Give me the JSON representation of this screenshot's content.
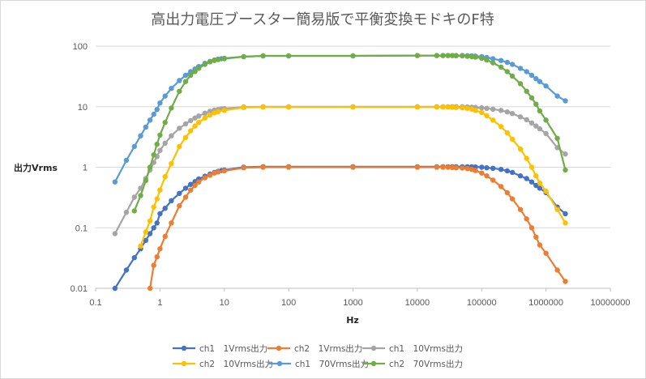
{
  "chart_data": {
    "type": "line",
    "title": "高出力電圧ブースター簡易版で平衡変換モドキのF特",
    "xlabel": "Hz",
    "ylabel": "出力Vrms",
    "x_scale": "log",
    "y_scale": "log",
    "xlim": [
      0.1,
      10000000
    ],
    "ylim": [
      0.01,
      100
    ],
    "x_ticks": [
      "0.1",
      "1",
      "10",
      "100",
      "1000",
      "10000",
      "100000",
      "1000000",
      "10000000"
    ],
    "y_ticks": [
      "0.01",
      "0.1",
      "1",
      "10",
      "100"
    ],
    "grid": "horizontal",
    "legend_position": "bottom",
    "series": [
      {
        "name": "ch1　1Vrms出力",
        "color": "#4472c4",
        "x": [
          0.2,
          0.3,
          0.4,
          0.5,
          0.6,
          0.7,
          0.8,
          0.9,
          1,
          1.2,
          1.5,
          2,
          2.5,
          3,
          3.5,
          4,
          5,
          6,
          7,
          8,
          9,
          10,
          20,
          40,
          100,
          1000,
          10000,
          20000,
          25000,
          30000,
          35000,
          40000,
          50000,
          60000,
          70000,
          80000,
          100000,
          120000,
          150000,
          200000,
          250000,
          300000,
          400000,
          500000,
          600000,
          700000,
          800000,
          1000000,
          1500000,
          2000000
        ],
        "y": [
          0.01,
          0.02,
          0.032,
          0.045,
          0.062,
          0.08,
          0.1,
          0.12,
          0.17,
          0.21,
          0.28,
          0.37,
          0.45,
          0.52,
          0.58,
          0.64,
          0.71,
          0.77,
          0.82,
          0.86,
          0.88,
          0.9,
          1.0,
          1.02,
          1.02,
          1.02,
          1.02,
          1.02,
          1.02,
          1.02,
          1.02,
          1.02,
          1.02,
          1.02,
          1.02,
          1.01,
          1.0,
          0.98,
          0.96,
          0.92,
          0.87,
          0.82,
          0.72,
          0.65,
          0.57,
          0.5,
          0.45,
          0.38,
          0.22,
          0.17
        ]
      },
      {
        "name": "ch2　1Vrms出力",
        "color": "#ed7d31",
        "x": [
          0.7,
          0.8,
          0.9,
          1,
          1.2,
          1.5,
          2,
          2.5,
          3,
          3.5,
          4,
          5,
          6,
          7,
          8,
          10,
          20,
          40,
          100,
          1000,
          10000,
          20000,
          25000,
          30000,
          35000,
          40000,
          50000,
          60000,
          70000,
          80000,
          100000,
          120000,
          150000,
          200000,
          250000,
          300000,
          400000,
          500000,
          600000,
          700000,
          800000,
          1000000,
          1500000,
          2000000
        ],
        "y": [
          0.01,
          0.024,
          0.033,
          0.045,
          0.072,
          0.12,
          0.23,
          0.32,
          0.42,
          0.5,
          0.57,
          0.67,
          0.74,
          0.8,
          0.84,
          0.87,
          0.98,
          1.0,
          1.0,
          1.0,
          1.0,
          1.0,
          1.0,
          1.0,
          0.99,
          0.98,
          0.97,
          0.95,
          0.92,
          0.88,
          0.8,
          0.72,
          0.61,
          0.48,
          0.38,
          0.3,
          0.2,
          0.14,
          0.1,
          0.07,
          0.052,
          0.038,
          0.02,
          0.013
        ]
      },
      {
        "name": "ch1　10Vrms出力",
        "color": "#a5a5a5",
        "x": [
          0.2,
          0.3,
          0.4,
          0.5,
          0.6,
          0.7,
          0.8,
          0.9,
          1,
          1.2,
          1.5,
          2,
          2.5,
          3,
          3.5,
          4,
          5,
          6,
          7,
          8,
          9,
          10,
          20,
          40,
          100,
          1000,
          10000,
          20000,
          25000,
          30000,
          35000,
          40000,
          50000,
          60000,
          70000,
          80000,
          100000,
          120000,
          150000,
          200000,
          250000,
          300000,
          400000,
          500000,
          600000,
          700000,
          800000,
          1000000,
          1500000,
          2000000
        ],
        "y": [
          0.08,
          0.18,
          0.32,
          0.45,
          0.65,
          0.9,
          1.2,
          1.5,
          1.9,
          2.5,
          3.3,
          4.4,
          5.2,
          5.9,
          6.5,
          7.0,
          7.8,
          8.4,
          8.8,
          9.0,
          9.2,
          9.3,
          9.9,
          10.0,
          10.0,
          10.0,
          10.0,
          10.0,
          10.0,
          10.0,
          10.0,
          10.0,
          10.0,
          9.9,
          9.8,
          9.7,
          9.6,
          9.4,
          9.1,
          8.7,
          8.2,
          7.7,
          6.8,
          6.1,
          5.4,
          4.8,
          4.3,
          3.6,
          2.1,
          1.65
        ]
      },
      {
        "name": "ch2　10Vrms出力",
        "color": "#ffc000",
        "x": [
          0.5,
          0.6,
          0.7,
          0.8,
          0.9,
          1,
          1.2,
          1.5,
          2,
          2.5,
          3,
          3.5,
          4,
          5,
          6,
          7,
          8,
          10,
          20,
          40,
          100,
          1000,
          10000,
          20000,
          25000,
          30000,
          35000,
          40000,
          50000,
          60000,
          70000,
          80000,
          100000,
          120000,
          150000,
          200000,
          250000,
          300000,
          400000,
          500000,
          600000,
          700000,
          800000,
          1000000,
          1500000,
          2000000
        ],
        "y": [
          0.05,
          0.085,
          0.13,
          0.22,
          0.3,
          0.42,
          0.7,
          1.15,
          2.2,
          3.1,
          4.0,
          4.8,
          5.5,
          6.5,
          7.3,
          7.9,
          8.3,
          8.7,
          9.7,
          9.9,
          9.9,
          9.9,
          9.9,
          9.9,
          9.9,
          9.9,
          9.8,
          9.7,
          9.6,
          9.4,
          9.1,
          8.7,
          8.0,
          7.1,
          6.0,
          4.7,
          3.7,
          2.9,
          2.0,
          1.4,
          1.0,
          0.72,
          0.55,
          0.4,
          0.2,
          0.12
        ]
      },
      {
        "name": "ch1　70Vrms出力",
        "color": "#5b9bd5",
        "x": [
          0.2,
          0.3,
          0.4,
          0.5,
          0.6,
          0.7,
          0.8,
          0.9,
          1,
          1.2,
          1.5,
          2,
          2.5,
          3,
          3.5,
          4,
          5,
          6,
          7,
          8,
          9,
          10,
          20,
          40,
          100,
          1000,
          10000,
          20000,
          25000,
          30000,
          35000,
          40000,
          50000,
          60000,
          70000,
          80000,
          100000,
          120000,
          150000,
          200000,
          250000,
          300000,
          400000,
          500000,
          600000,
          700000,
          800000,
          1000000,
          1500000,
          2000000
        ],
        "y": [
          0.57,
          1.3,
          2.2,
          3.3,
          4.6,
          6.0,
          7.5,
          9.0,
          11.5,
          15,
          20,
          27,
          33,
          38,
          42,
          46,
          52,
          56,
          59,
          61,
          62,
          63,
          67,
          69,
          69,
          69,
          70,
          70,
          70,
          70,
          70,
          70,
          70,
          69.5,
          69,
          68.5,
          67,
          65,
          62,
          58,
          54,
          50,
          43,
          38,
          33,
          29,
          26,
          22,
          15,
          12.5
        ]
      },
      {
        "name": "ch2　70Vrms出力",
        "color": "#70ad47",
        "x": [
          0.4,
          0.5,
          0.6,
          0.7,
          0.8,
          0.9,
          1,
          1.2,
          1.5,
          2,
          2.5,
          3,
          3.5,
          4,
          5,
          6,
          7,
          8,
          10,
          20,
          40,
          100,
          1000,
          10000,
          20000,
          25000,
          30000,
          35000,
          40000,
          50000,
          60000,
          70000,
          80000,
          100000,
          120000,
          150000,
          200000,
          250000,
          300000,
          400000,
          500000,
          600000,
          700000,
          800000,
          1000000,
          1500000,
          2000000
        ],
        "y": [
          0.19,
          0.34,
          0.6,
          1.0,
          1.6,
          2.4,
          3.4,
          5.5,
          9.5,
          18,
          26,
          33,
          38,
          43,
          50,
          55,
          58,
          60,
          62,
          67,
          69,
          69,
          69,
          70,
          70,
          70,
          70,
          70,
          69.5,
          69,
          68,
          67,
          66,
          63,
          59,
          53,
          45,
          38,
          32,
          24,
          18,
          14,
          11,
          8.5,
          6.0,
          3.0,
          0.9
        ]
      }
    ]
  }
}
